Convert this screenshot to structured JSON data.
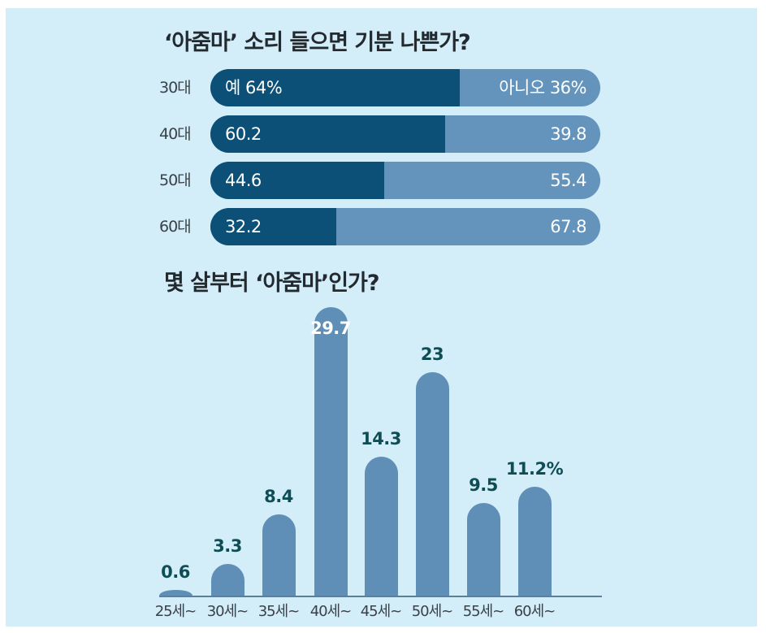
{
  "colors": {
    "background": "#d3eef9",
    "yes_bar": "#0c5077",
    "no_bar": "#6494bb",
    "column": "#5f8fb7",
    "value_text": "#0f4d55"
  },
  "chart_data": [
    {
      "type": "bar",
      "orientation": "horizontal-stacked-100",
      "title": "‘아줌마’ 소리 들으면 기분 나쁜가?",
      "categories": [
        "30대",
        "40대",
        "50대",
        "60대"
      ],
      "series": [
        {
          "name": "예",
          "values": [
            64,
            60.2,
            44.6,
            32.2
          ]
        },
        {
          "name": "아니오",
          "values": [
            36,
            39.8,
            55.4,
            67.8
          ]
        }
      ],
      "labels": {
        "yes": [
          "예 64%",
          "60.2",
          "44.6",
          "32.2"
        ],
        "no": [
          "아니오 36%",
          "39.8",
          "55.4",
          "67.8"
        ]
      },
      "unit": "%",
      "xlim": [
        0,
        100
      ],
      "grid": false,
      "legend": "inline labels in first row"
    },
    {
      "type": "bar",
      "title": "몇 살부터 ‘아줌마’인가?",
      "categories": [
        "25세~",
        "30세~",
        "35세~",
        "40세~",
        "45세~",
        "50세~",
        "55세~",
        "60세~"
      ],
      "values": [
        0.6,
        3.3,
        8.4,
        29.7,
        14.3,
        23,
        9.5,
        11.2
      ],
      "value_labels": [
        "0.6",
        "3.3",
        "8.4",
        "29.7",
        "14.3",
        "23",
        "9.5",
        "11.2%"
      ],
      "unit": "%",
      "xlabel": "",
      "ylabel": "",
      "ylim": [
        0,
        30
      ],
      "grid": false
    }
  ]
}
